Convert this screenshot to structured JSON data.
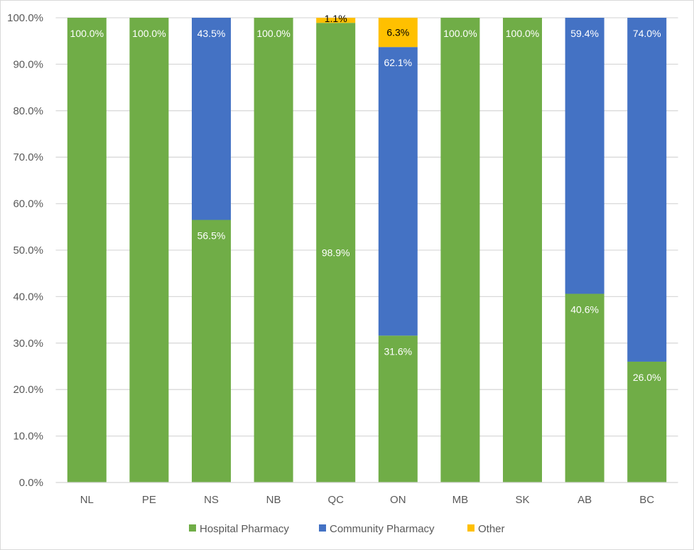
{
  "chart_data": {
    "type": "bar",
    "stacked": true,
    "categories": [
      "NL",
      "PE",
      "NS",
      "NB",
      "QC",
      "ON",
      "MB",
      "SK",
      "AB",
      "BC"
    ],
    "series": [
      {
        "name": "Hospital Pharmacy",
        "color": "#70AD47",
        "values": [
          100.0,
          100.0,
          56.5,
          100.0,
          98.9,
          31.6,
          100.0,
          100.0,
          40.6,
          26.0
        ],
        "labels": [
          "100.0%",
          "100.0%",
          "56.5%",
          "100.0%",
          "98.9%",
          "31.6%",
          "100.0%",
          "100.0%",
          "40.6%",
          "26.0%"
        ]
      },
      {
        "name": "Community Pharmacy",
        "color": "#4472C4",
        "values": [
          0,
          0,
          43.5,
          0,
          0,
          62.1,
          0,
          0,
          59.4,
          74.0
        ],
        "labels": [
          "",
          "",
          "43.5%",
          "",
          "",
          "62.1%",
          "",
          "",
          "59.4%",
          "74.0%"
        ]
      },
      {
        "name": "Other",
        "color": "#FFC000",
        "values": [
          0,
          0,
          0,
          0,
          1.1,
          6.3,
          0,
          0,
          0,
          0
        ],
        "labels": [
          "",
          "",
          "",
          "",
          "1.1%",
          "6.3%",
          "",
          "",
          "",
          ""
        ]
      }
    ],
    "ylim": [
      0,
      100
    ],
    "yticks": [
      "0.0%",
      "10.0%",
      "20.0%",
      "30.0%",
      "40.0%",
      "50.0%",
      "60.0%",
      "70.0%",
      "80.0%",
      "90.0%",
      "100.0%"
    ],
    "grid": true,
    "legend_position": "bottom"
  }
}
